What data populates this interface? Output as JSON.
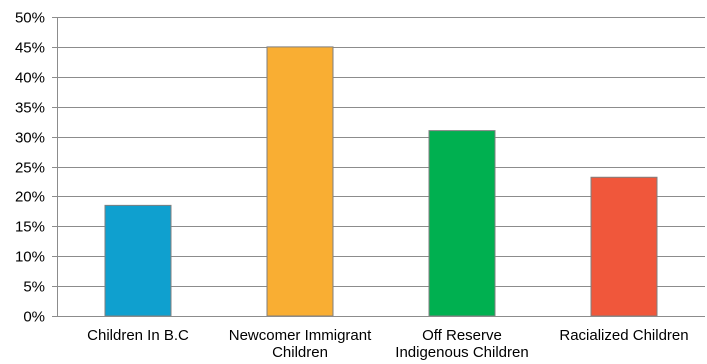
{
  "chart_data": {
    "type": "bar",
    "title": "",
    "xlabel": "",
    "ylabel": "",
    "ylim": [
      0,
      50
    ],
    "y_tick_step": 5,
    "y_tick_labels": [
      "0%",
      "5%",
      "10%",
      "15%",
      "20%",
      "25%",
      "30%",
      "35%",
      "40%",
      "45%",
      "50%"
    ],
    "categories": [
      [
        "Children In B.C"
      ],
      [
        "Newcomer Immigrant",
        "Children"
      ],
      [
        "Off Reserve",
        "Indigenous Children"
      ],
      [
        "Racialized Children"
      ]
    ],
    "values": [
      18.5,
      45,
      31,
      23.2
    ],
    "colors": [
      "#0fa0cf",
      "#f9ae33",
      "#00b050",
      "#f0573b"
    ],
    "grid": true,
    "legend": "none"
  }
}
